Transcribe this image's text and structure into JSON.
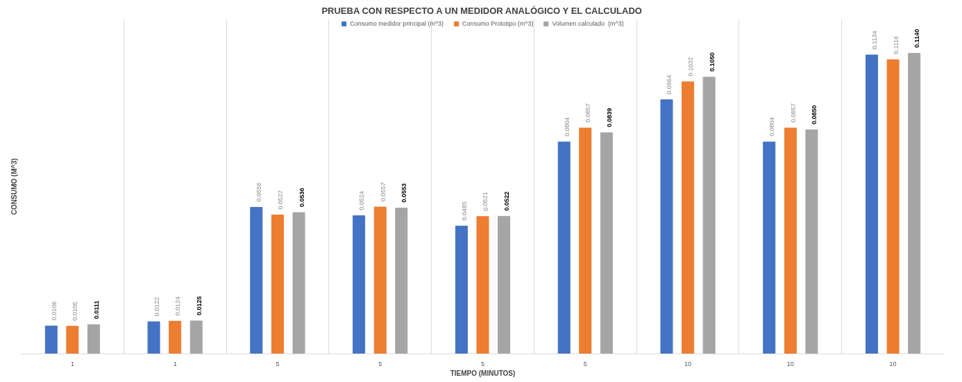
{
  "chart_data": {
    "type": "bar",
    "title": "PRUEBA CON RESPECTO A UN MEDIDOR ANALÓGICO Y EL CALCULADO",
    "xlabel": "TIEMPO (MINUTOS)",
    "ylabel": "CONSUMO (M^3)",
    "categories": [
      "1",
      "1",
      "5",
      "5",
      "5",
      "5",
      "10",
      "10",
      "10"
    ],
    "series": [
      {
        "name": "Consumo medidor principal (m^3)",
        "color": "#4472c4",
        "values": [
          0.0106,
          0.0122,
          0.0556,
          0.0524,
          0.0485,
          0.0804,
          0.0964,
          0.0804,
          0.1134
        ],
        "value_labels": [
          "0.0106",
          "0.0122",
          "0.0556",
          "0.0524",
          "0.0485",
          "0.0804",
          "0.0964",
          "0.0804",
          "0.1134"
        ]
      },
      {
        "name": "Consumo Prototipo (m^3)",
        "color": "#ed7d31",
        "values": [
          0.0105,
          0.0124,
          0.0527,
          0.0557,
          0.0521,
          0.0857,
          0.1032,
          0.0857,
          0.1116
        ],
        "value_labels": [
          "0.0105",
          "0.0124",
          "0.0527",
          "0.0557",
          "0.0521",
          "0.0857",
          "0.1032",
          "0.0857",
          "0.1116"
        ]
      },
      {
        "name": "Volumen calculado  (m^3)",
        "color": "#a5a5a5",
        "values": [
          0.0111,
          0.0125,
          0.0536,
          0.0553,
          0.0522,
          0.0839,
          0.105,
          0.085,
          0.114
        ],
        "value_labels": [
          "0.0111",
          "0.0125",
          "0.0536",
          "0.0553",
          "0.0522",
          "0.0839",
          "0.1050",
          "0.0850",
          "0.1140"
        ]
      }
    ],
    "ylim": [
      0,
      0.127
    ],
    "tick_labels": "x",
    "grid": "x",
    "legend": "top"
  }
}
